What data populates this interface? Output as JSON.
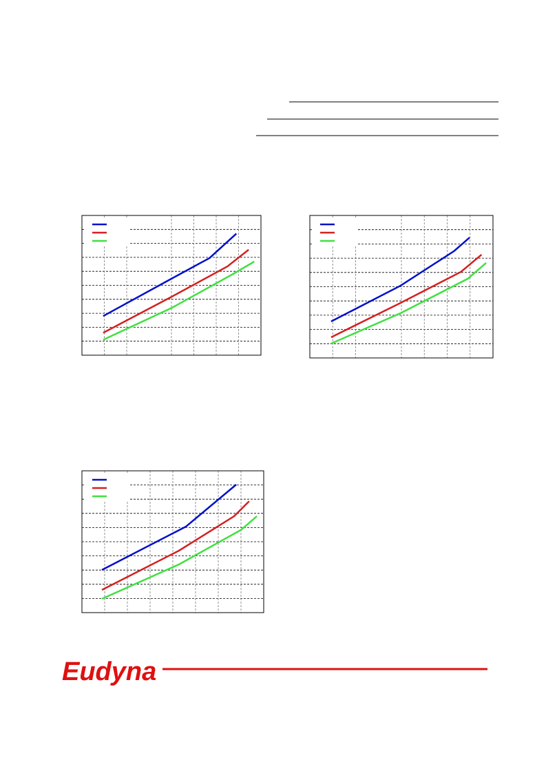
{
  "logo": "Eudyna",
  "chart_data": [
    {
      "type": "line",
      "xlim": [
        0,
        8
      ],
      "ylim": [
        0,
        10
      ],
      "xticks": [
        1,
        2,
        4,
        5,
        6,
        7
      ],
      "yticks": [
        1,
        2,
        3,
        4,
        5,
        6,
        7,
        8,
        9
      ],
      "grid": true,
      "series": [
        {
          "color": "#0010c8",
          "x": [
            0.95,
            4.03,
            5.7,
            6.9
          ],
          "values": [
            2.8,
            5.5,
            6.95,
            8.7
          ]
        },
        {
          "color": "#d42020",
          "x": [
            0.95,
            4.03,
            6.5,
            7.45
          ],
          "values": [
            1.6,
            4.2,
            6.35,
            7.55
          ]
        },
        {
          "color": "#40e040",
          "x": [
            0.95,
            4.03,
            6.8,
            7.7
          ],
          "values": [
            1.1,
            3.4,
            5.85,
            6.7
          ]
        }
      ]
    },
    {
      "type": "line",
      "xlim": [
        0,
        8
      ],
      "ylim": [
        0,
        10
      ],
      "xticks": [
        1,
        2,
        4,
        5,
        6,
        7
      ],
      "yticks": [
        1,
        2,
        3,
        4,
        5,
        6,
        7,
        8,
        9
      ],
      "grid": true,
      "series": [
        {
          "color": "#0010c8",
          "x": [
            0.93,
            3.96,
            6.3,
            6.98
          ],
          "values": [
            2.56,
            5.07,
            7.5,
            8.45
          ]
        },
        {
          "color": "#d42020",
          "x": [
            0.93,
            3.96,
            6.6,
            7.5
          ],
          "values": [
            1.45,
            3.86,
            6.04,
            7.25
          ]
        },
        {
          "color": "#40e040",
          "x": [
            0.93,
            3.96,
            6.9,
            7.7
          ],
          "values": [
            1.01,
            3.14,
            5.56,
            6.67
          ]
        }
      ]
    },
    {
      "type": "line",
      "xlim": [
        0,
        8
      ],
      "ylim": [
        0,
        10
      ],
      "xticks": [
        1,
        2,
        3,
        4,
        5,
        6,
        7
      ],
      "yticks": [
        1,
        2,
        3,
        4,
        5,
        6,
        7,
        8,
        9
      ],
      "grid": true,
      "series": [
        {
          "color": "#0010c8",
          "x": [
            0.88,
            4.58,
            6.79
          ],
          "values": [
            3.01,
            6.07,
            9.03
          ]
        },
        {
          "color": "#d42020",
          "x": [
            0.88,
            4.27,
            6.7,
            7.36
          ],
          "values": [
            1.6,
            4.37,
            6.8,
            7.86
          ]
        },
        {
          "color": "#40e040",
          "x": [
            0.88,
            4.27,
            7.0,
            7.7
          ],
          "values": [
            0.97,
            3.4,
            5.83,
            6.8
          ]
        }
      ]
    }
  ]
}
